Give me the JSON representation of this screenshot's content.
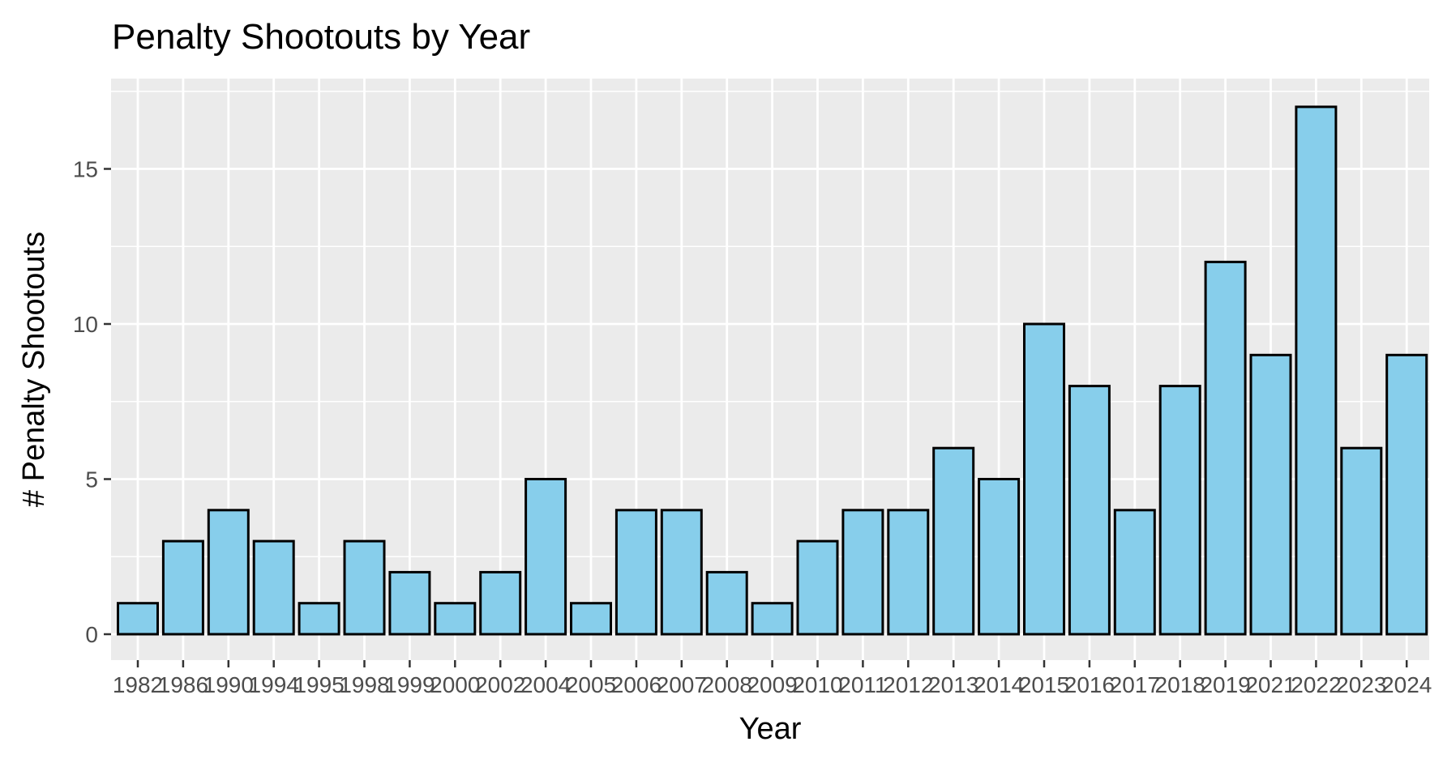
{
  "chart_data": {
    "type": "bar",
    "title": "Penalty Shootouts by Year",
    "xlabel": "Year",
    "ylabel": "# Penalty Shootouts",
    "categories": [
      "1982",
      "1986",
      "1990",
      "1994",
      "1995",
      "1998",
      "1999",
      "2000",
      "2002",
      "2004",
      "2005",
      "2006",
      "2007",
      "2008",
      "2009",
      "2010",
      "2011",
      "2012",
      "2013",
      "2014",
      "2015",
      "2016",
      "2017",
      "2018",
      "2019",
      "2021",
      "2022",
      "2023",
      "2024"
    ],
    "values": [
      1,
      3,
      4,
      3,
      1,
      3,
      2,
      1,
      2,
      5,
      1,
      4,
      4,
      2,
      1,
      3,
      4,
      4,
      6,
      5,
      10,
      8,
      4,
      8,
      12,
      9,
      17,
      6,
      9
    ],
    "ylim": [
      0,
      17.5
    ],
    "yticks": [
      0,
      5,
      10,
      15
    ],
    "grid": true,
    "legend": "none",
    "colors": {
      "bar_fill": "#87CEEB",
      "bar_outline": "#000000",
      "panel_background": "#EBEBEB",
      "grid": "#FFFFFF",
      "tick_text": "#4D4D4D"
    }
  }
}
